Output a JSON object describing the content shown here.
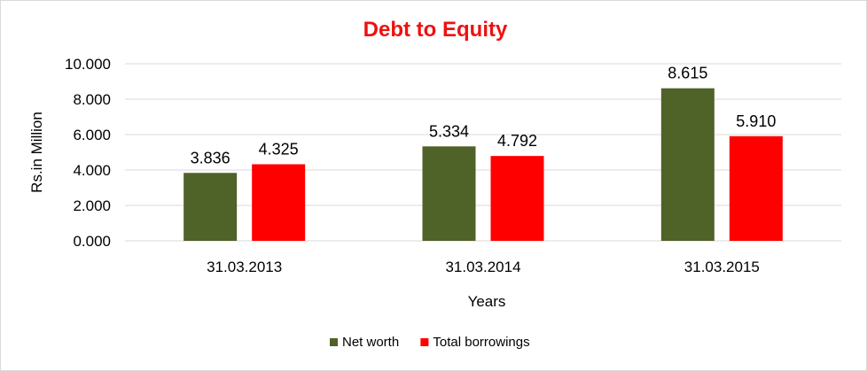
{
  "chart_data": {
    "type": "bar",
    "title": "Debt to Equity",
    "title_color": "#ee1111",
    "xlabel": "Years",
    "ylabel": "Rs.in Million",
    "categories": [
      "31.03.2013",
      "31.03.2014",
      "31.03.2015"
    ],
    "series": [
      {
        "name": "Net worth",
        "color": "#4f6228",
        "values": [
          3.836,
          5.334,
          8.615
        ],
        "labels": [
          "3.836",
          "5.334",
          "8.615"
        ]
      },
      {
        "name": "Total borrowings",
        "color": "#ff0000",
        "values": [
          4.325,
          4.792,
          5.91
        ],
        "labels": [
          "4.325",
          "4.792",
          "5.910"
        ]
      }
    ],
    "ylim": [
      0,
      10
    ],
    "yticks": [
      0,
      2,
      4,
      6,
      8,
      10
    ],
    "ytick_labels": [
      "0.000",
      "2.000",
      "4.000",
      "6.000",
      "8.000",
      "10.000"
    ],
    "grid": true,
    "legend_position": "bottom"
  }
}
